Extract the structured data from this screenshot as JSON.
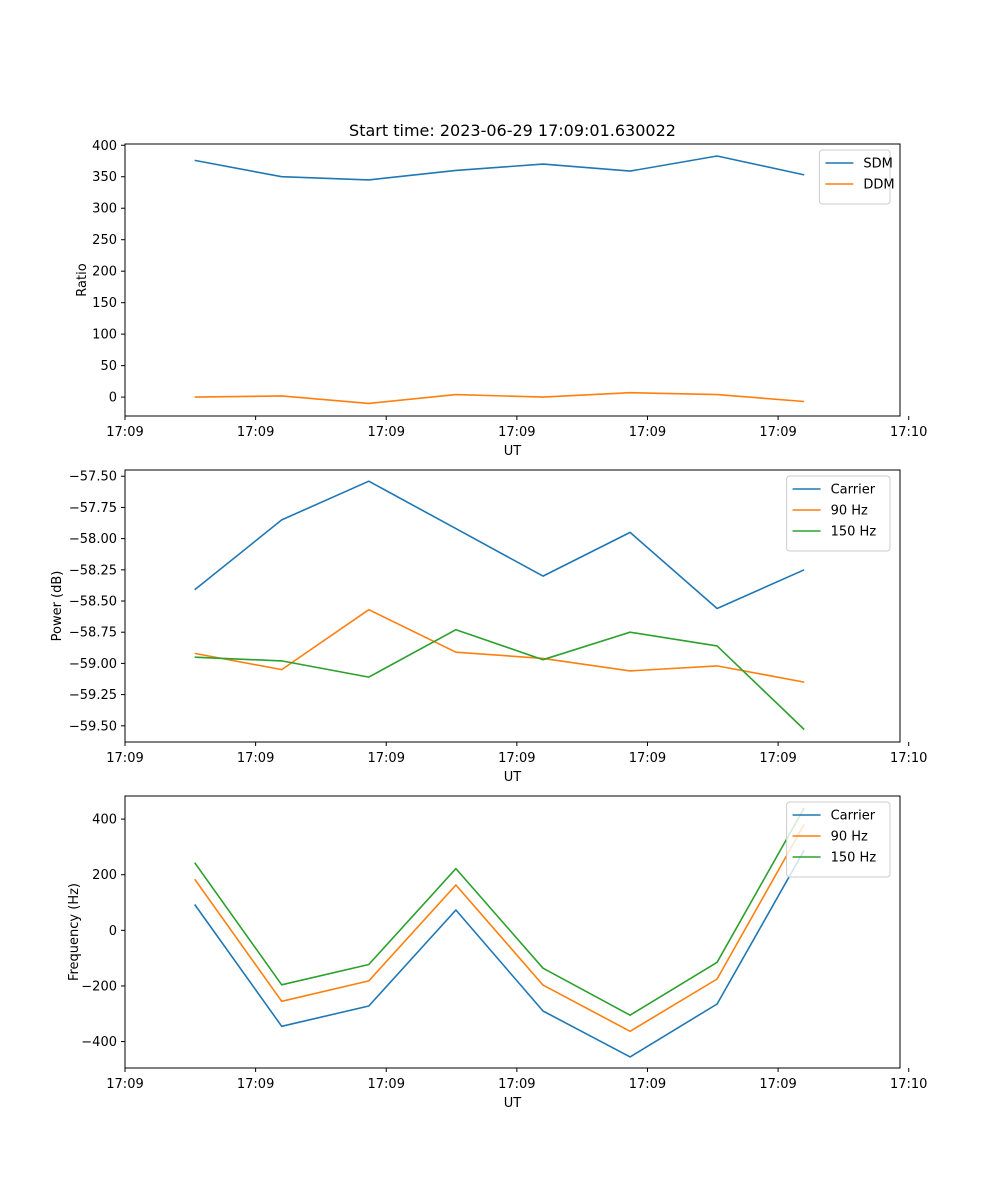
{
  "figure": {
    "title": "Start time: 2023-06-29 17:09:01.630022"
  },
  "chart_data": [
    {
      "type": "line",
      "title": "Start time: 2023-06-29 17:09:01.630022",
      "xlabel": "UT",
      "ylabel": "Ratio",
      "x": [
        1,
        2,
        3,
        4,
        5,
        6,
        7,
        8
      ],
      "xlim": [
        0.2,
        9.1
      ],
      "xticks": [
        0.2,
        1.7,
        3.2,
        4.7,
        6.2,
        7.7,
        9.2
      ],
      "xtick_labels": [
        "17:09",
        "17:09",
        "17:09",
        "17:09",
        "17:09",
        "17:09",
        "17:10"
      ],
      "ylim": [
        -30,
        402
      ],
      "yticks": [
        0,
        50,
        100,
        150,
        200,
        250,
        300,
        350,
        400
      ],
      "ytick_labels": [
        "0",
        "50",
        "100",
        "150",
        "200",
        "250",
        "300",
        "350",
        "400"
      ],
      "legend_position": "top-right",
      "grid": false,
      "series": [
        {
          "name": "SDM",
          "color": "#1f77b4",
          "values": [
            376,
            350,
            345,
            360,
            370,
            359,
            383,
            353
          ]
        },
        {
          "name": "DDM",
          "color": "#ff7f0e",
          "values": [
            0,
            2,
            -10,
            4,
            0,
            7,
            4,
            -7
          ]
        }
      ]
    },
    {
      "type": "line",
      "title": "",
      "xlabel": "UT",
      "ylabel": "Power (dB)",
      "x": [
        1,
        2,
        3,
        4,
        5,
        6,
        7,
        8
      ],
      "xlim": [
        0.2,
        9.1
      ],
      "xticks": [
        0.2,
        1.7,
        3.2,
        4.7,
        6.2,
        7.7,
        9.2
      ],
      "xtick_labels": [
        "17:09",
        "17:09",
        "17:09",
        "17:09",
        "17:09",
        "17:09",
        "17:10"
      ],
      "ylim": [
        -59.63,
        -57.45
      ],
      "yticks": [
        -57.5,
        -57.75,
        -58.0,
        -58.25,
        -58.5,
        -58.75,
        -59.0,
        -59.25,
        -59.5
      ],
      "ytick_labels": [
        "−57.50",
        "−57.75",
        "−58.00",
        "−58.25",
        "−58.50",
        "−58.75",
        "−59.00",
        "−59.25",
        "−59.50"
      ],
      "legend_position": "top-right",
      "grid": false,
      "series": [
        {
          "name": "Carrier",
          "color": "#1f77b4",
          "values": [
            -58.41,
            -57.85,
            -57.54,
            -57.92,
            -58.3,
            -57.95,
            -58.56,
            -58.25
          ]
        },
        {
          "name": "90 Hz",
          "color": "#ff7f0e",
          "values": [
            -58.92,
            -59.05,
            -58.57,
            -58.91,
            -58.96,
            -59.06,
            -59.02,
            -59.15
          ]
        },
        {
          "name": "150 Hz",
          "color": "#2ca02c",
          "values": [
            -58.95,
            -58.98,
            -59.11,
            -58.73,
            -58.97,
            -58.75,
            -58.86,
            -59.53
          ]
        }
      ]
    },
    {
      "type": "line",
      "title": "",
      "xlabel": "UT",
      "ylabel": "Frequency (Hz)",
      "x": [
        1,
        2,
        3,
        4,
        5,
        6,
        7,
        8
      ],
      "xlim": [
        0.2,
        9.1
      ],
      "xticks": [
        0.2,
        1.7,
        3.2,
        4.7,
        6.2,
        7.7,
        9.2
      ],
      "xtick_labels": [
        "17:09",
        "17:09",
        "17:09",
        "17:09",
        "17:09",
        "17:09",
        "17:10"
      ],
      "ylim": [
        -495,
        483
      ],
      "yticks": [
        -400,
        -200,
        0,
        200,
        400
      ],
      "ytick_labels": [
        "−400",
        "−200",
        "0",
        "200",
        "400"
      ],
      "legend_position": "top-right",
      "grid": false,
      "series": [
        {
          "name": "Carrier",
          "color": "#1f77b4",
          "values": [
            93,
            -345,
            -272,
            73,
            -290,
            -455,
            -265,
            288
          ]
        },
        {
          "name": "90 Hz",
          "color": "#ff7f0e",
          "values": [
            184,
            -255,
            -182,
            163,
            -197,
            -363,
            -175,
            381
          ]
        },
        {
          "name": "150 Hz",
          "color": "#2ca02c",
          "values": [
            243,
            -196,
            -123,
            222,
            -136,
            -305,
            -115,
            440
          ]
        }
      ]
    }
  ]
}
